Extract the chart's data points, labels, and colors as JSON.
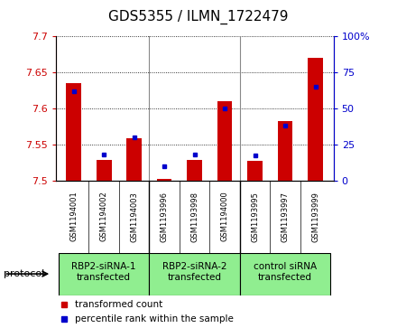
{
  "title": "GDS5355 / ILMN_1722479",
  "samples": [
    "GSM1194001",
    "GSM1194002",
    "GSM1194003",
    "GSM1193996",
    "GSM1193998",
    "GSM1194000",
    "GSM1193995",
    "GSM1193997",
    "GSM1193999"
  ],
  "red_values": [
    7.635,
    7.528,
    7.558,
    7.502,
    7.528,
    7.61,
    7.527,
    7.582,
    7.67
  ],
  "blue_values": [
    62,
    18,
    30,
    10,
    18,
    50,
    17,
    38,
    65
  ],
  "ylim": [
    7.5,
    7.7
  ],
  "y2lim": [
    0,
    100
  ],
  "yticks": [
    7.5,
    7.55,
    7.6,
    7.65,
    7.7
  ],
  "y2ticks": [
    0,
    25,
    50,
    75,
    100
  ],
  "groups": [
    {
      "label": "RBP2-siRNA-1\ntransfected",
      "start": 0,
      "end": 3,
      "color": "#90ee90"
    },
    {
      "label": "RBP2-siRNA-2\ntransfected",
      "start": 3,
      "end": 6,
      "color": "#90ee90"
    },
    {
      "label": "control siRNA\ntransfected",
      "start": 6,
      "end": 9,
      "color": "#90ee90"
    }
  ],
  "red_color": "#cc0000",
  "blue_color": "#0000cc",
  "bar_width": 0.5,
  "protocol_label": "protocol",
  "legend_red": "transformed count",
  "legend_blue": "percentile rank within the sample",
  "sample_bg_color": "#d3d3d3",
  "group_line_color": "#888888",
  "title_fontsize": 11,
  "tick_fontsize": 8,
  "label_fontsize": 7.5
}
